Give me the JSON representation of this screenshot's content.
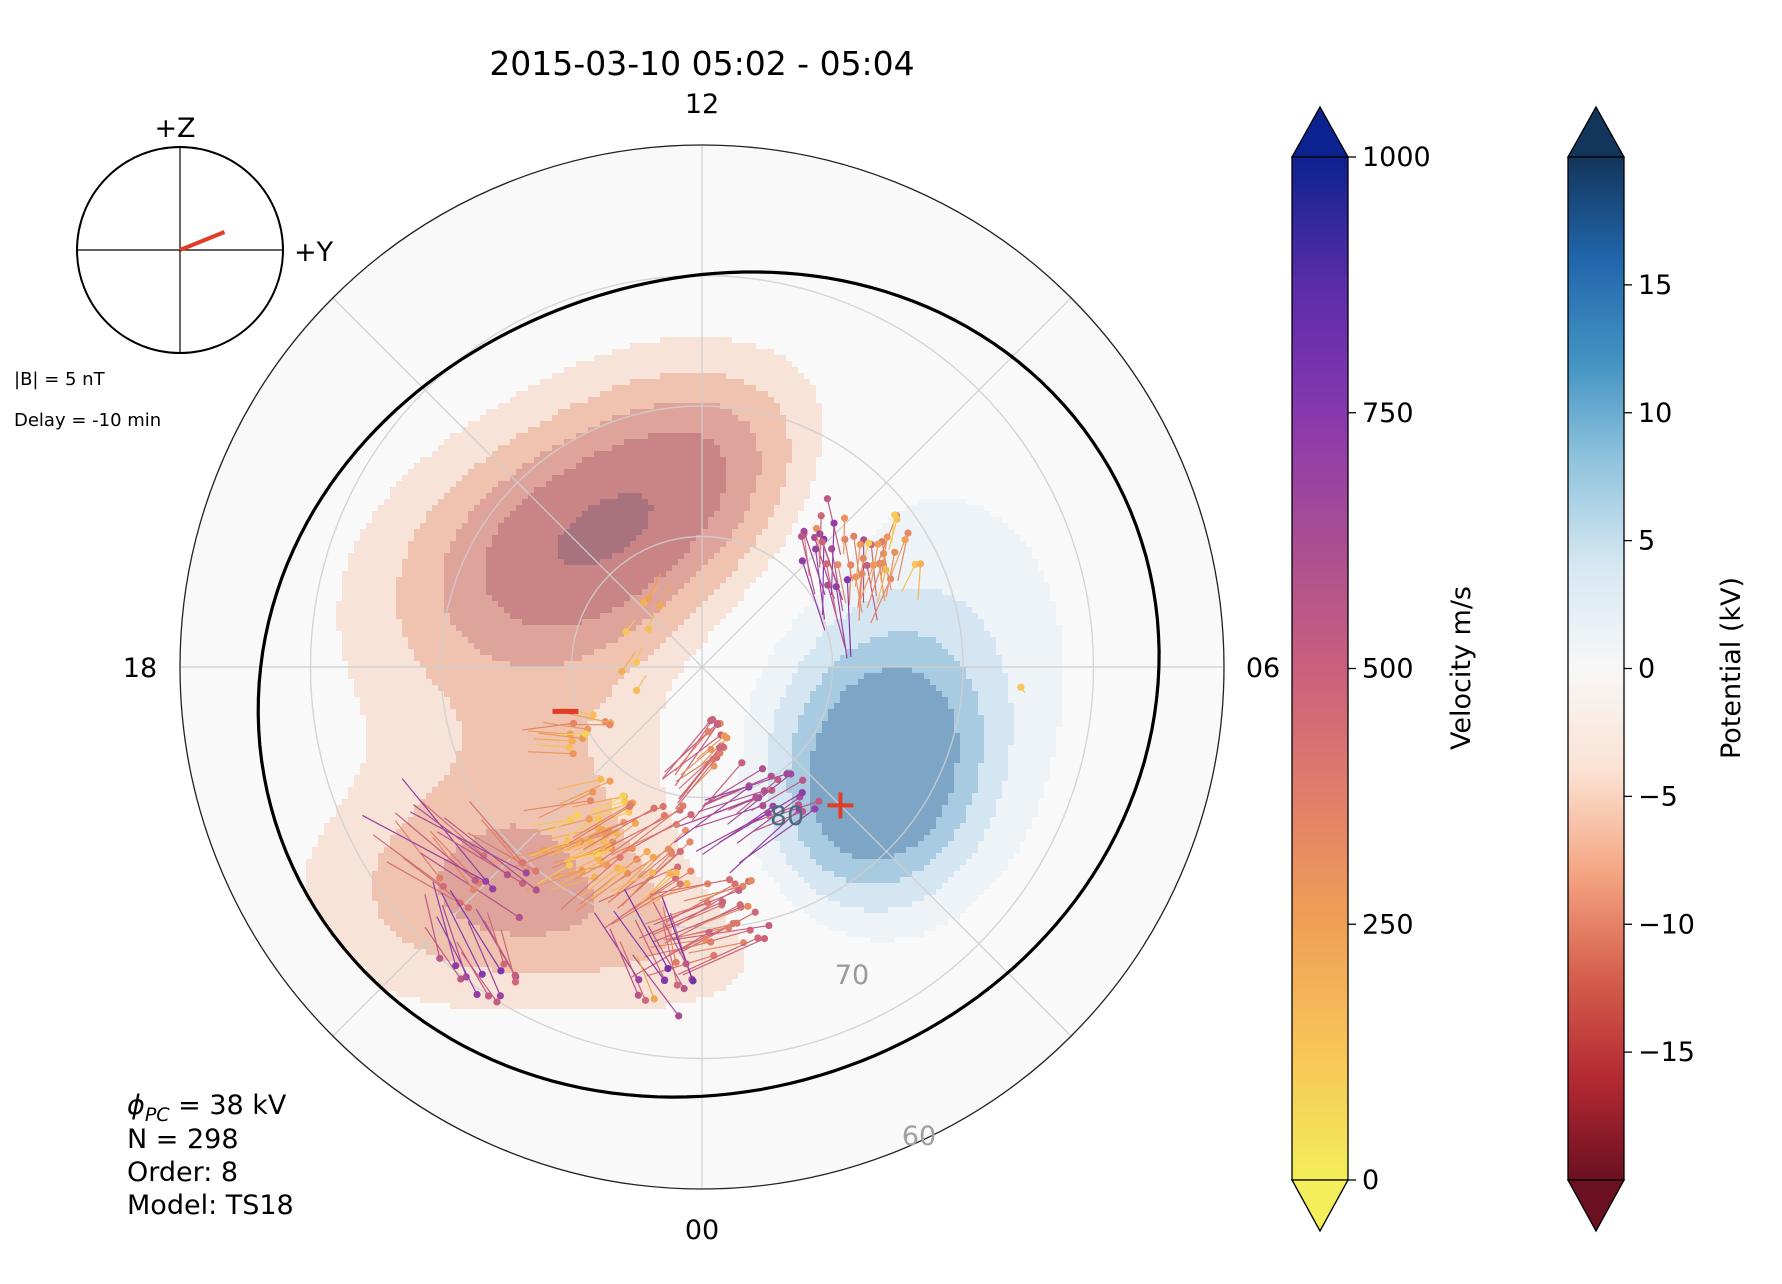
{
  "chart_data": {
    "type": "polar convection map",
    "title": "2015-03-10 05:02 - 05:04",
    "mlt_labels": {
      "top": "12",
      "right": "06",
      "bottom": "00",
      "left": "18"
    },
    "latitude_labels": [
      "80",
      "70",
      "60"
    ],
    "latitude_circles": [
      80,
      70,
      60
    ],
    "imf_clock": {
      "z_label": "+Z",
      "y_label": "+Y",
      "b_text": "|B| = 5 nT",
      "delay_text": "Delay = -10 min",
      "clock_angle_deg": 68
    },
    "stats": {
      "phi_prefix": "ϕ",
      "phi_sub": "PC",
      "phi_value": " = 38 kV",
      "n_text": "N = 298",
      "order_text": "Order: 8",
      "model_text": "Model: TS18"
    },
    "extrema": {
      "min_marker": "−",
      "max_marker": "+",
      "min_mlt": 19.2,
      "min_lat": 79.0,
      "max_mlt": 3.0,
      "max_lat": 75.0
    },
    "velocity_colorbar": {
      "label": "Velocity m/s",
      "min": 0,
      "max": 1000,
      "ticks": [
        0,
        250,
        500,
        750,
        1000
      ],
      "tick_labels": [
        "0",
        "250",
        "500",
        "750",
        "1000"
      ],
      "colors": [
        "#f3ee59",
        "#f8c558",
        "#f0a056",
        "#df7f6a",
        "#c8607e",
        "#aa4e93",
        "#8838ae",
        "#5a2ca9",
        "#0c2291"
      ]
    },
    "potential_colorbar": {
      "label": "Potential (kV)",
      "min": -20,
      "max": 20,
      "ticks": [
        -15,
        -10,
        -5,
        0,
        5,
        10,
        15
      ],
      "tick_labels": [
        "−15",
        "−10",
        "−5",
        "0",
        "5",
        "10",
        "15"
      ],
      "colors": [
        "#6b1020",
        "#b42a33",
        "#d6604d",
        "#f4a582",
        "#fbe2d3",
        "#f7f7f7",
        "#d6e8f2",
        "#92c5de",
        "#4393c3",
        "#2166ac",
        "#12355b"
      ]
    },
    "potential_levels": {
      "negative": [
        -3,
        -6,
        -9,
        -12,
        -16
      ],
      "positive": [
        3,
        6,
        9,
        12
      ]
    },
    "vector_groups": [
      {
        "mlt0": 21.2,
        "mlt1": 22.3,
        "lat0": 71.5,
        "lat1": 79,
        "count": 40,
        "vmin": 80,
        "vmax": 380,
        "dir": 200,
        "len": 55
      },
      {
        "mlt0": 19.4,
        "mlt1": 20.3,
        "lat0": 78,
        "lat1": 82,
        "count": 12,
        "vmin": 60,
        "vmax": 360,
        "dir": 175,
        "len": 40
      },
      {
        "mlt0": 20.5,
        "mlt1": 21.6,
        "lat0": 63.5,
        "lat1": 70,
        "count": 18,
        "vmin": 350,
        "vmax": 720,
        "dir": 140,
        "len": 110
      },
      {
        "mlt0": 21.2,
        "mlt1": 22.0,
        "lat0": 59.5,
        "lat1": 63,
        "count": 14,
        "vmin": 400,
        "vmax": 800,
        "dir": 115,
        "len": 75
      },
      {
        "mlt0": 22.4,
        "mlt1": 23.8,
        "lat0": 73,
        "lat1": 79.5,
        "count": 30,
        "vmin": 150,
        "vmax": 480,
        "dir": 215,
        "len": 70
      },
      {
        "mlt0": 0.0,
        "mlt1": 1.0,
        "lat0": 67.5,
        "lat1": 74.5,
        "count": 26,
        "vmin": 280,
        "vmax": 520,
        "dir": 200,
        "len": 75
      },
      {
        "mlt0": 23.2,
        "mlt1": 0.0,
        "lat0": 63,
        "lat1": 67.5,
        "count": 14,
        "vmin": 180,
        "vmax": 820,
        "dir": 115,
        "len": 70
      },
      {
        "mlt0": 1.4,
        "mlt1": 2.8,
        "lat0": 76,
        "lat1": 81,
        "count": 22,
        "vmin": 500,
        "vmax": 720,
        "dir": 210,
        "len": 75
      },
      {
        "mlt0": 0.3,
        "mlt1": 1.6,
        "lat0": 82,
        "lat1": 86,
        "count": 18,
        "vmin": 280,
        "vmax": 520,
        "dir": 225,
        "len": 60
      },
      {
        "mlt0": 14.0,
        "mlt1": 20.0,
        "lat0": 83,
        "lat1": 86,
        "count": 8,
        "vmin": 120,
        "vmax": 300,
        "dir": 60,
        "len": 25
      },
      {
        "mlt0": 8.0,
        "mlt1": 9.6,
        "lat0": 73,
        "lat1": 79,
        "count": 30,
        "vmin": 300,
        "vmax": 780,
        "dir": 280,
        "len": 60
      },
      {
        "mlt0": 7.6,
        "mlt1": 8.6,
        "lat0": 71,
        "lat1": 76,
        "count": 18,
        "vmin": 60,
        "vmax": 380,
        "dir": 255,
        "len": 40
      },
      {
        "mlt0": 5.7,
        "mlt1": 5.8,
        "lat0": 65.5,
        "lat1": 65.6,
        "count": 1,
        "vmin": 120,
        "vmax": 120,
        "dir": 300,
        "len": 12
      }
    ]
  }
}
